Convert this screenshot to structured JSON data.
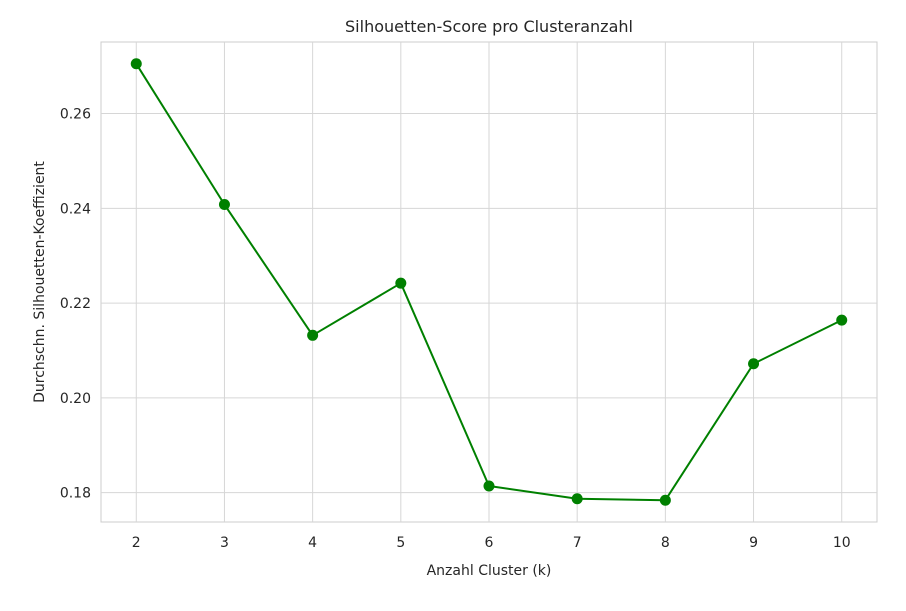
{
  "chart_data": {
    "type": "line",
    "title": "Silhouetten-Score pro Clusteranzahl",
    "xlabel": "Anzahl Cluster (k)",
    "ylabel": "Durchschn. Silhouetten-Koeffizient",
    "x": [
      2,
      3,
      4,
      5,
      6,
      7,
      8,
      9,
      10
    ],
    "series": [
      {
        "values": [
          0.2705,
          0.2408,
          0.2132,
          0.2242,
          0.1814,
          0.1787,
          0.1784,
          0.2072,
          0.2164
        ],
        "color": "#008000",
        "marker": "circle"
      }
    ],
    "xticks": [
      "2",
      "3",
      "4",
      "5",
      "6",
      "7",
      "8",
      "9",
      "10"
    ],
    "yticks": [
      "0.18",
      "0.20",
      "0.22",
      "0.24",
      "0.26"
    ],
    "ytick_values": [
      0.18,
      0.2,
      0.22,
      0.24,
      0.26
    ],
    "xlim": [
      1.6,
      10.4
    ],
    "ylim": [
      0.1738,
      0.2751
    ],
    "grid": true,
    "style": "whitegrid"
  }
}
